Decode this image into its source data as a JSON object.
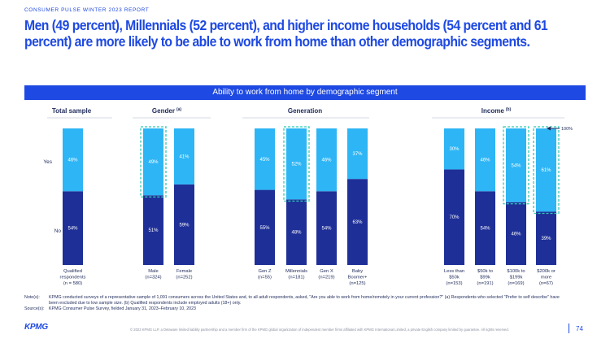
{
  "report_label": "CONSUMER PULSE WINTER 2023 REPORT",
  "headline": {
    "line1": "Men (49 percent), Millennials (52 percent), and higher income households (54 percent and 61",
    "line2": "percent) are more likely to be able to work from home than other demographic segments."
  },
  "banner": "Ability to work from home by demographic segment",
  "chart_data": {
    "type": "bar",
    "stacked": true,
    "ylim": [
      0,
      100
    ],
    "series": [
      {
        "name": "No",
        "color": "#1e2f97"
      },
      {
        "name": "Yes",
        "color": "#2db5f5"
      }
    ],
    "groups": [
      {
        "title": "Total sample",
        "superscript": "",
        "categories": [
          {
            "label": [
              "Qualified",
              "respondents",
              "(n = 580)"
            ],
            "no": 54,
            "yes": 46,
            "no_label": "54%",
            "yes_label": "46%",
            "highlight": false
          }
        ]
      },
      {
        "title": "Gender",
        "superscript": "(a)",
        "categories": [
          {
            "label": [
              "Male",
              "(n=324)"
            ],
            "no": 51,
            "yes": 49,
            "no_label": "51%",
            "yes_label": "49%",
            "highlight": true
          },
          {
            "label": [
              "Female",
              "(n=252)"
            ],
            "no": 59,
            "yes": 41,
            "no_label": "59%",
            "yes_label": "41%",
            "highlight": false
          }
        ]
      },
      {
        "title": "Generation",
        "superscript": "",
        "categories": [
          {
            "label": [
              "Gen Z",
              "(n=55)"
            ],
            "no": 55,
            "yes": 45,
            "no_label": "55%",
            "yes_label": "45%",
            "highlight": false
          },
          {
            "label": [
              "Millennials",
              "(n=181)"
            ],
            "no": 48,
            "yes": 52,
            "no_label": "48%",
            "yes_label": "52%",
            "highlight": true
          },
          {
            "label": [
              "Gen X",
              "(n=219)"
            ],
            "no": 54,
            "yes": 46,
            "no_label": "54%",
            "yes_label": "46%",
            "highlight": false
          },
          {
            "label": [
              "Baby",
              "Boomer+",
              "(n=125)"
            ],
            "no": 63,
            "yes": 37,
            "no_label": "63%",
            "yes_label": "37%",
            "highlight": false
          }
        ]
      },
      {
        "title": "Income",
        "superscript": "(b)",
        "categories": [
          {
            "label": [
              "Less than",
              "$50k",
              "(n=153)"
            ],
            "no": 70,
            "yes": 30,
            "no_label": "70%",
            "yes_label": "30%",
            "highlight": false
          },
          {
            "label": [
              "$50k to",
              "$99k",
              "(n=191)"
            ],
            "no": 54,
            "yes": 46,
            "no_label": "54%",
            "yes_label": "46%",
            "highlight": false
          },
          {
            "label": [
              "$100k to",
              "$199k",
              "(n=169)"
            ],
            "no": 46,
            "yes": 54,
            "no_label": "46%",
            "yes_label": "54%",
            "highlight": true
          },
          {
            "label": [
              "$200k or",
              "more",
              "(n=67)"
            ],
            "no": 39,
            "yes": 61,
            "no_label": "39%",
            "yes_label": "61%",
            "highlight": true
          }
        ]
      }
    ],
    "row_labels": {
      "yes": "Yes",
      "no": "No"
    },
    "annotation": "100%"
  },
  "notes": {
    "notes_label": "Note(s):",
    "notes_line1": "KPMG conducted surveys of a representative sample of 1,091 consumers across the United States and, to all adult respondents, asked, \"Are you able to work from home/remotely in your current profession?\" (a) Respondents who selected \"Prefer to self describe\" have",
    "notes_line2": "been excluded due to low sample size. (b) Qualified respondents include employed adults (18+) only.",
    "source_label": "Source(s):",
    "source_text": "KPMG Consumer Pulse Survey, fielded January 31, 2023–February 10, 2023"
  },
  "footer": {
    "logo": "KPMG",
    "legal": "© 2023 KPMG LLP, a Delaware limited liability partnership and a member firm of the KPMG global organization of independent member firms affiliated with KPMG International Limited, a private English company limited by guarantee. All rights reserved.",
    "page_number": "74"
  }
}
